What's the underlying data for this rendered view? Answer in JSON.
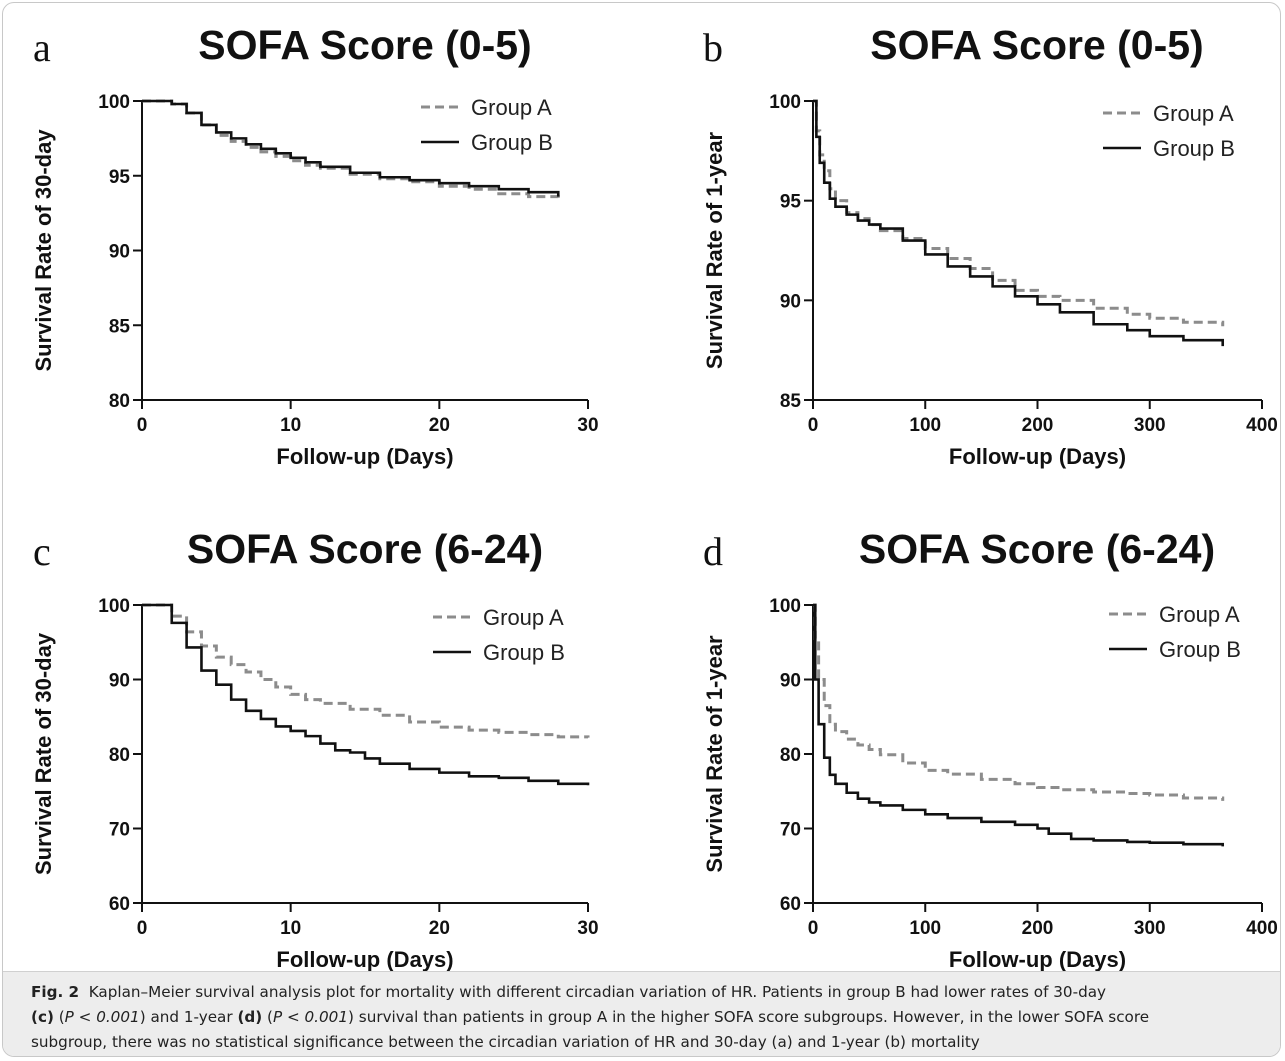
{
  "figure": {
    "panels": [
      {
        "letter": "a",
        "title": "SOFA Score (0-5)",
        "xlabel": "Follow-up (Days)",
        "ylabel": "Survival Rate of 30-day"
      },
      {
        "letter": "b",
        "title": "SOFA Score (0-5)",
        "xlabel": "Follow-up (Days)",
        "ylabel": "Survival Rate of 1-year"
      },
      {
        "letter": "c",
        "title": "SOFA Score (6-24)",
        "xlabel": "Follow-up (Days)",
        "ylabel": "Survival Rate of 30-day"
      },
      {
        "letter": "d",
        "title": "SOFA Score (6-24)",
        "xlabel": "Follow-up (Days)",
        "ylabel": "Survival Rate of 1-year"
      }
    ]
  },
  "caption": {
    "label": "Fig. 2",
    "text1": "Kaplan–Meier survival analysis plot for mortality with different circadian variation of HR. Patients in group B had lower rates of 30-day",
    "c_label": "(c)",
    "p1": "P < 0.001",
    "mid": "and 1-year",
    "d_label": "(d)",
    "p2": "P < 0.001",
    "text2": "survival than patients in group A in the higher SOFA score subgroups. However, in the lower SOFA score",
    "text3": "subgroup, there was no statistical significance between the circadian variation of HR and 30-day (a) and 1-year (b) mortality"
  },
  "chart_data": [
    {
      "type": "line",
      "title": "SOFA Score (0-5)",
      "xlabel": "Follow-up (Days)",
      "ylabel": "Survival Rate of 30-day",
      "xlim": [
        0,
        30
      ],
      "ylim": [
        80,
        100
      ],
      "xticks": [
        0,
        10,
        20,
        30
      ],
      "yticks": [
        80,
        85,
        90,
        95,
        100
      ],
      "legend": "top-right",
      "series": [
        {
          "name": "Group A",
          "style": "dashed",
          "color": "#8c8c8c",
          "x": [
            0,
            2,
            3,
            4,
            5,
            6,
            7,
            8,
            9,
            10,
            11,
            12,
            14,
            16,
            18,
            20,
            22,
            24,
            26,
            28
          ],
          "y": [
            100,
            99.8,
            99.2,
            98.4,
            97.7,
            97.3,
            96.9,
            96.6,
            96.3,
            96.0,
            95.7,
            95.5,
            95.1,
            94.8,
            94.6,
            94.3,
            94.1,
            93.8,
            93.6,
            93.3
          ]
        },
        {
          "name": "Group B",
          "style": "solid",
          "color": "#111111",
          "x": [
            0,
            2,
            3,
            4,
            5,
            6,
            7,
            8,
            9,
            10,
            11,
            12,
            14,
            16,
            18,
            20,
            22,
            24,
            26,
            28
          ],
          "y": [
            100,
            99.8,
            99.2,
            98.4,
            97.9,
            97.5,
            97.1,
            96.8,
            96.5,
            96.2,
            95.9,
            95.6,
            95.2,
            94.9,
            94.7,
            94.5,
            94.3,
            94.1,
            93.9,
            93.6
          ]
        }
      ]
    },
    {
      "type": "line",
      "title": "SOFA Score (0-5)",
      "xlabel": "Follow-up (Days)",
      "ylabel": "Survival Rate of 1-year",
      "xlim": [
        0,
        400
      ],
      "ylim": [
        85,
        100
      ],
      "xticks": [
        0,
        100,
        200,
        300,
        400
      ],
      "yticks": [
        85,
        90,
        95,
        100
      ],
      "legend": "top-right",
      "series": [
        {
          "name": "Group A",
          "style": "dashed",
          "color": "#8c8c8c",
          "x": [
            0,
            3,
            6,
            10,
            15,
            20,
            30,
            40,
            50,
            60,
            80,
            100,
            120,
            140,
            160,
            180,
            200,
            220,
            250,
            280,
            300,
            330,
            365
          ],
          "y": [
            100,
            98.5,
            97.3,
            96.5,
            95.6,
            95.0,
            94.4,
            94.1,
            93.8,
            93.5,
            93.1,
            92.6,
            92.1,
            91.6,
            91.0,
            90.5,
            90.2,
            90.0,
            89.6,
            89.3,
            89.1,
            88.9,
            88.7
          ]
        },
        {
          "name": "Group B",
          "style": "solid",
          "color": "#111111",
          "x": [
            0,
            3,
            6,
            10,
            15,
            20,
            30,
            40,
            50,
            60,
            80,
            100,
            120,
            140,
            160,
            180,
            200,
            220,
            250,
            280,
            300,
            330,
            365
          ],
          "y": [
            100,
            98.2,
            96.9,
            95.9,
            95.1,
            94.7,
            94.3,
            94.0,
            93.8,
            93.6,
            93.0,
            92.3,
            91.7,
            91.2,
            90.7,
            90.2,
            89.8,
            89.4,
            88.8,
            88.5,
            88.2,
            88.0,
            87.7
          ]
        }
      ]
    },
    {
      "type": "line",
      "title": "SOFA Score (6-24)",
      "xlabel": "Follow-up (Days)",
      "ylabel": "Survival Rate of 30-day",
      "xlim": [
        0,
        30
      ],
      "ylim": [
        60,
        100
      ],
      "xticks": [
        0,
        10,
        20,
        30
      ],
      "yticks": [
        60,
        70,
        80,
        90,
        100
      ],
      "legend": "top-right",
      "series": [
        {
          "name": "Group A",
          "style": "dashed",
          "color": "#8c8c8c",
          "x": [
            0,
            2,
            3,
            4,
            5,
            6,
            7,
            8,
            9,
            10,
            11,
            12,
            14,
            16,
            18,
            20,
            22,
            24,
            26,
            28,
            30
          ],
          "y": [
            100,
            98.5,
            96.4,
            94.5,
            93.0,
            92.0,
            91.0,
            90.0,
            89.0,
            88.0,
            87.3,
            86.8,
            86.0,
            85.2,
            84.3,
            83.6,
            83.2,
            82.9,
            82.6,
            82.3,
            82.2
          ]
        },
        {
          "name": "Group B",
          "style": "solid",
          "color": "#111111",
          "x": [
            0,
            2,
            3,
            4,
            5,
            6,
            7,
            8,
            9,
            10,
            11,
            12,
            13,
            14,
            15,
            16,
            18,
            20,
            22,
            24,
            26,
            28,
            30
          ],
          "y": [
            100,
            97.6,
            94.3,
            91.2,
            89.3,
            87.3,
            85.8,
            84.7,
            83.7,
            83.1,
            82.4,
            81.4,
            80.5,
            80.2,
            79.4,
            78.7,
            78.0,
            77.5,
            77.0,
            76.8,
            76.4,
            76.0,
            75.8
          ]
        }
      ]
    },
    {
      "type": "line",
      "title": "SOFA Score (6-24)",
      "xlabel": "Follow-up (Days)",
      "ylabel": "Survival Rate of 1-year",
      "xlim": [
        0,
        400
      ],
      "ylim": [
        60,
        100
      ],
      "xticks": [
        0,
        100,
        200,
        300,
        400
      ],
      "yticks": [
        60,
        70,
        80,
        90,
        100
      ],
      "legend": "top-right",
      "series": [
        {
          "name": "Group A",
          "style": "dashed",
          "color": "#8c8c8c",
          "x": [
            0,
            2,
            5,
            10,
            15,
            20,
            30,
            40,
            50,
            60,
            80,
            100,
            120,
            150,
            180,
            200,
            220,
            250,
            280,
            300,
            330,
            365
          ],
          "y": [
            100,
            95.5,
            90.0,
            86.5,
            84.0,
            83.0,
            82.0,
            81.2,
            80.6,
            79.9,
            78.8,
            77.8,
            77.3,
            76.6,
            76.0,
            75.5,
            75.2,
            74.9,
            74.7,
            74.5,
            74.1,
            73.7
          ]
        },
        {
          "name": "Group B",
          "style": "solid",
          "color": "#111111",
          "x": [
            0,
            2,
            5,
            10,
            15,
            20,
            30,
            40,
            50,
            60,
            80,
            100,
            120,
            150,
            180,
            200,
            210,
            230,
            250,
            280,
            300,
            330,
            365
          ],
          "y": [
            100,
            90.0,
            84.0,
            79.5,
            77.2,
            76.0,
            74.8,
            74.0,
            73.5,
            73.1,
            72.5,
            71.9,
            71.4,
            70.9,
            70.5,
            70.0,
            69.3,
            68.6,
            68.4,
            68.2,
            68.1,
            67.9,
            67.6
          ]
        }
      ]
    }
  ]
}
